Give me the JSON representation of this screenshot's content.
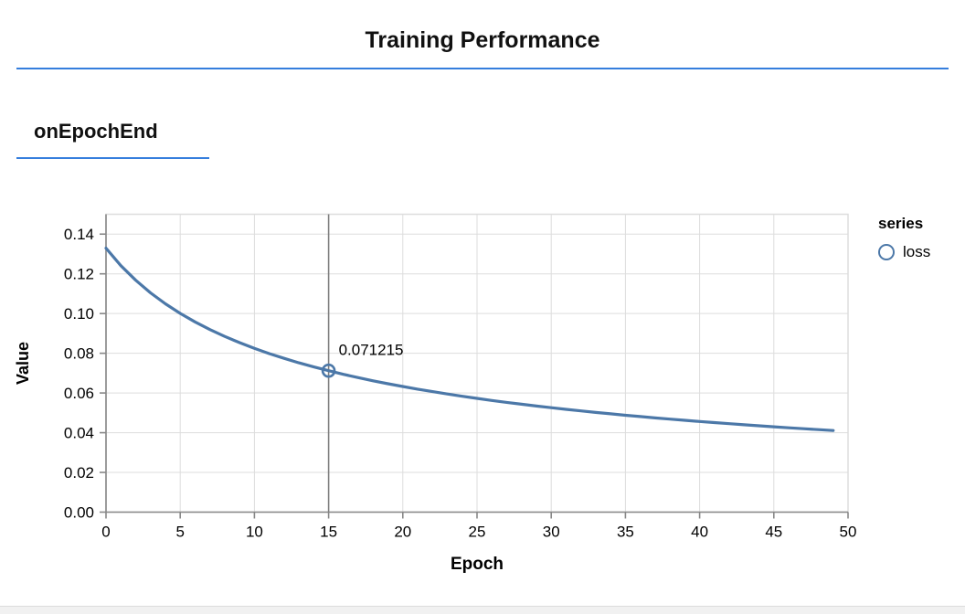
{
  "page": {
    "title": "Training Performance",
    "section_title": "onEpochEnd"
  },
  "colors": {
    "accent_blue": "#357edd",
    "series_blue": "#4c78a8",
    "grid": "#dddddd",
    "axis": "#888888",
    "rule": "#808080",
    "label": "#000000"
  },
  "legend": {
    "title": "series",
    "items": [
      {
        "label": "loss",
        "marker": "circle-outline-icon",
        "color": "#4c78a8"
      }
    ]
  },
  "tooltip": {
    "epoch": 15,
    "value": 0.071215,
    "label": "0.071215"
  },
  "chart_data": {
    "type": "line",
    "title": "onEpochEnd",
    "xlabel": "Epoch",
    "ylabel": "Value",
    "xlim": [
      0,
      50
    ],
    "ylim": [
      0,
      0.15
    ],
    "xticks": [
      0,
      5,
      10,
      15,
      20,
      25,
      30,
      35,
      40,
      45,
      50
    ],
    "yticks": [
      0,
      0.02,
      0.04,
      0.06,
      0.08,
      0.1,
      0.12,
      0.14
    ],
    "ytick_labels": [
      "0.00",
      "0.02",
      "0.04",
      "0.06",
      "0.08",
      "0.10",
      "0.12",
      "0.14"
    ],
    "grid": true,
    "legend_position": "right",
    "series": [
      {
        "name": "loss",
        "x": [
          0,
          1,
          2,
          3,
          4,
          5,
          6,
          7,
          8,
          9,
          10,
          11,
          12,
          13,
          14,
          15,
          16,
          17,
          18,
          19,
          20,
          21,
          22,
          23,
          24,
          25,
          26,
          27,
          28,
          29,
          30,
          31,
          32,
          33,
          34,
          35,
          36,
          37,
          38,
          39,
          40,
          41,
          42,
          43,
          44,
          45,
          46,
          47,
          48,
          49
        ],
        "y": [
          0.13295,
          0.12416,
          0.11676,
          0.11042,
          0.10491,
          0.10006,
          0.09578,
          0.09193,
          0.08847,
          0.08533,
          0.08247,
          0.07985,
          0.07743,
          0.0752,
          0.07313,
          0.071215,
          0.0694,
          0.06772,
          0.06614,
          0.06465,
          0.06325,
          0.06193,
          0.06067,
          0.05948,
          0.05834,
          0.05727,
          0.05624,
          0.05527,
          0.05434,
          0.05344,
          0.05258,
          0.05176,
          0.05097,
          0.05022,
          0.04949,
          0.04879,
          0.04811,
          0.04746,
          0.04683,
          0.04622,
          0.04563,
          0.04507,
          0.04452,
          0.04399,
          0.04347,
          0.04297,
          0.04248,
          0.04201,
          0.04155,
          0.04111
        ]
      }
    ],
    "highlight": {
      "x": 15,
      "y": 0.071215,
      "label": "0.071215"
    }
  }
}
